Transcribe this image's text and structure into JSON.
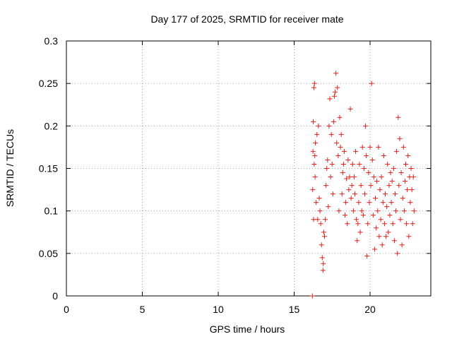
{
  "chart_data": {
    "type": "scatter",
    "title": "Day 177 of 2025, SRMTID for receiver mate",
    "xlabel": "GPS time / hours",
    "ylabel": "SRMTID / TECUs",
    "xlim": [
      0,
      24
    ],
    "ylim": [
      0,
      0.3
    ],
    "xticks": [
      0,
      5,
      10,
      15,
      20
    ],
    "xtick_labels": [
      "0",
      "5",
      "10",
      "15",
      "20"
    ],
    "yticks": [
      0,
      0.05,
      0.1,
      0.15,
      0.2,
      0.25,
      0.3
    ],
    "ytick_labels": [
      "0",
      "0.05",
      "0.1",
      "0.15",
      "0.2",
      "0.25",
      "0.3"
    ],
    "grid": true,
    "legend": "none",
    "marker": "+",
    "color": "#e0201a",
    "series": [
      {
        "name": "SRMTID",
        "points": [
          [
            16.2,
            0.0
          ],
          [
            16.22,
            0.125
          ],
          [
            16.24,
            0.17
          ],
          [
            16.26,
            0.205
          ],
          [
            16.28,
            0.09
          ],
          [
            16.3,
            0.245
          ],
          [
            16.32,
            0.155
          ],
          [
            16.34,
            0.25
          ],
          [
            16.36,
            0.165
          ],
          [
            16.38,
            0.14
          ],
          [
            16.4,
            0.18
          ],
          [
            16.45,
            0.11
          ],
          [
            16.5,
            0.19
          ],
          [
            16.55,
            0.09
          ],
          [
            16.6,
            0.2
          ],
          [
            16.65,
            0.115
          ],
          [
            16.7,
            0.1
          ],
          [
            16.75,
            0.085
          ],
          [
            16.8,
            0.06
          ],
          [
            16.85,
            0.045
          ],
          [
            16.9,
            0.03
          ],
          [
            16.92,
            0.038
          ],
          [
            16.95,
            0.075
          ],
          [
            17.0,
            0.07
          ],
          [
            17.05,
            0.09
          ],
          [
            17.1,
            0.13
          ],
          [
            17.15,
            0.15
          ],
          [
            17.2,
            0.16
          ],
          [
            17.25,
            0.105
          ],
          [
            17.3,
            0.2
          ],
          [
            17.35,
            0.232
          ],
          [
            17.4,
            0.14
          ],
          [
            17.45,
            0.19
          ],
          [
            17.5,
            0.155
          ],
          [
            17.55,
            0.12
          ],
          [
            17.6,
            0.205
          ],
          [
            17.65,
            0.235
          ],
          [
            17.7,
            0.24
          ],
          [
            17.75,
            0.262
          ],
          [
            17.8,
            0.18
          ],
          [
            17.85,
            0.245
          ],
          [
            17.9,
            0.165
          ],
          [
            17.95,
            0.1
          ],
          [
            18.0,
            0.21
          ],
          [
            18.05,
            0.175
          ],
          [
            18.1,
            0.19
          ],
          [
            18.15,
            0.12
          ],
          [
            18.2,
            0.145
          ],
          [
            18.25,
            0.155
          ],
          [
            18.3,
            0.17
          ],
          [
            18.35,
            0.095
          ],
          [
            18.4,
            0.11
          ],
          [
            18.45,
            0.138
          ],
          [
            18.5,
            0.085
          ],
          [
            18.55,
            0.16
          ],
          [
            18.6,
            0.125
          ],
          [
            18.65,
            0.14
          ],
          [
            18.7,
            0.22
          ],
          [
            18.75,
            0.115
          ],
          [
            18.8,
            0.13
          ],
          [
            18.85,
            0.155
          ],
          [
            18.9,
            0.1
          ],
          [
            18.95,
            0.14
          ],
          [
            19.0,
            0.12
          ],
          [
            19.05,
            0.17
          ],
          [
            19.1,
            0.09
          ],
          [
            19.15,
            0.065
          ],
          [
            19.2,
            0.085
          ],
          [
            19.25,
            0.11
          ],
          [
            19.3,
            0.155
          ],
          [
            19.35,
            0.075
          ],
          [
            19.4,
            0.13
          ],
          [
            19.45,
            0.1
          ],
          [
            19.5,
            0.175
          ],
          [
            19.55,
            0.095
          ],
          [
            19.6,
            0.15
          ],
          [
            19.65,
            0.12
          ],
          [
            19.7,
            0.2
          ],
          [
            19.75,
            0.165
          ],
          [
            19.8,
            0.047
          ],
          [
            19.85,
            0.085
          ],
          [
            19.9,
            0.145
          ],
          [
            19.95,
            0.11
          ],
          [
            20.0,
            0.175
          ],
          [
            20.05,
            0.13
          ],
          [
            20.1,
            0.25
          ],
          [
            20.15,
            0.16
          ],
          [
            20.2,
            0.095
          ],
          [
            20.25,
            0.14
          ],
          [
            20.3,
            0.055
          ],
          [
            20.35,
            0.115
          ],
          [
            20.4,
            0.08
          ],
          [
            20.45,
            0.135
          ],
          [
            20.5,
            0.1
          ],
          [
            20.55,
            0.175
          ],
          [
            20.6,
            0.07
          ],
          [
            20.65,
            0.125
          ],
          [
            20.7,
            0.09
          ],
          [
            20.75,
            0.14
          ],
          [
            20.8,
            0.06
          ],
          [
            20.85,
            0.11
          ],
          [
            20.9,
            0.165
          ],
          [
            20.95,
            0.085
          ],
          [
            21.0,
            0.12
          ],
          [
            21.05,
            0.07
          ],
          [
            21.1,
            0.105
          ],
          [
            21.15,
            0.155
          ],
          [
            21.2,
            0.075
          ],
          [
            21.25,
            0.13
          ],
          [
            21.3,
            0.095
          ],
          [
            21.35,
            0.145
          ],
          [
            21.4,
            0.11
          ],
          [
            21.45,
            0.135
          ],
          [
            21.5,
            0.085
          ],
          [
            21.55,
            0.15
          ],
          [
            21.6,
            0.065
          ],
          [
            21.65,
            0.12
          ],
          [
            21.7,
            0.1
          ],
          [
            21.75,
            0.17
          ],
          [
            21.8,
            0.05
          ],
          [
            21.85,
            0.21
          ],
          [
            21.9,
            0.13
          ],
          [
            21.95,
            0.185
          ],
          [
            22.0,
            0.09
          ],
          [
            22.05,
            0.145
          ],
          [
            22.1,
            0.06
          ],
          [
            22.15,
            0.115
          ],
          [
            22.2,
            0.175
          ],
          [
            22.25,
            0.1
          ],
          [
            22.3,
            0.135
          ],
          [
            22.35,
            0.155
          ],
          [
            22.4,
            0.085
          ],
          [
            22.45,
            0.125
          ],
          [
            22.5,
            0.165
          ],
          [
            22.55,
            0.07
          ],
          [
            22.6,
            0.14
          ],
          [
            22.65,
            0.11
          ],
          [
            22.7,
            0.15
          ],
          [
            22.75,
            0.125
          ],
          [
            22.8,
            0.085
          ],
          [
            22.85,
            0.14
          ],
          [
            22.9,
            0.1
          ]
        ]
      }
    ]
  }
}
